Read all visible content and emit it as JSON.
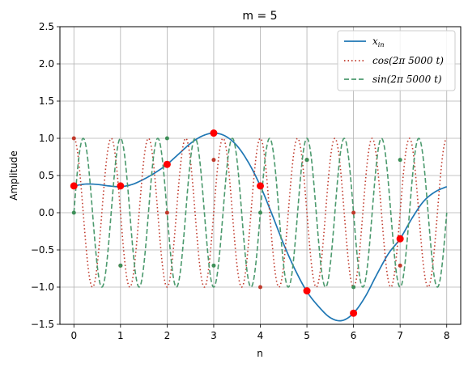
{
  "chart_data": {
    "type": "line",
    "title": "m = 5",
    "xlabel": "n",
    "ylabel": "Amplitude",
    "xlim": [
      -0.3,
      8.3
    ],
    "ylim": [
      -1.5,
      2.5
    ],
    "xticks": [
      "0",
      "1",
      "2",
      "3",
      "4",
      "5",
      "6",
      "7",
      "8"
    ],
    "yticks": [
      "2.5",
      "2.0",
      "1.5",
      "1.0",
      "0.5",
      "0.0",
      "−0.5",
      "−1.0",
      "−1.5"
    ],
    "grid": true,
    "legend_position": "top-right",
    "legend": {
      "xin_base": "x",
      "xin_sub": "in",
      "cos_label": "cos(2π 5000 t)",
      "sin_label": "sin(2π 5000 t)"
    },
    "series": [
      {
        "name": "x_in",
        "style": "solid",
        "color": "#1f77b4",
        "points": [
          [
            0,
            0.36
          ],
          [
            0.25,
            0.385
          ],
          [
            0.5,
            0.38
          ],
          [
            0.75,
            0.36
          ],
          [
            1,
            0.35
          ],
          [
            1.25,
            0.38
          ],
          [
            1.5,
            0.45
          ],
          [
            1.75,
            0.54
          ],
          [
            2,
            0.65
          ],
          [
            2.25,
            0.79
          ],
          [
            2.5,
            0.93
          ],
          [
            2.75,
            1.03
          ],
          [
            3,
            1.07
          ],
          [
            3.25,
            1.03
          ],
          [
            3.5,
            0.9
          ],
          [
            3.75,
            0.67
          ],
          [
            4,
            0.36
          ],
          [
            4.25,
            -0.02
          ],
          [
            4.5,
            -0.42
          ],
          [
            4.75,
            -0.77
          ],
          [
            5,
            -1.06
          ],
          [
            5.25,
            -1.26
          ],
          [
            5.5,
            -1.41
          ],
          [
            5.75,
            -1.45
          ],
          [
            6,
            -1.35
          ],
          [
            6.25,
            -1.13
          ],
          [
            6.5,
            -0.83
          ],
          [
            6.75,
            -0.55
          ],
          [
            7,
            -0.35
          ],
          [
            7.25,
            -0.08
          ],
          [
            7.5,
            0.15
          ],
          [
            7.75,
            0.28
          ],
          [
            8,
            0.35
          ]
        ]
      },
      {
        "name": "cos(2π 5000 t)",
        "style": "dotted",
        "color": "#c0392b",
        "cycles_per_unit": 1.25,
        "phase": "cos",
        "x_range": [
          0,
          8
        ]
      },
      {
        "name": "sin(2π 5000 t)",
        "style": "dashed",
        "color": "#4c9a6e",
        "cycles_per_unit": 1.25,
        "phase": "sin",
        "x_range": [
          0,
          8
        ]
      }
    ],
    "samples_xin": [
      [
        0,
        0.36
      ],
      [
        1,
        0.36
      ],
      [
        2,
        0.65
      ],
      [
        3,
        1.07
      ],
      [
        4,
        0.36
      ],
      [
        5,
        -1.05
      ],
      [
        6,
        -1.35
      ],
      [
        7,
        -0.35
      ]
    ],
    "samples_cos": [
      [
        0,
        1.0
      ],
      [
        1,
        -0.71
      ],
      [
        2,
        0.0
      ],
      [
        3,
        0.71
      ],
      [
        4,
        -1.0
      ],
      [
        5,
        0.71
      ],
      [
        6,
        0.0
      ],
      [
        7,
        -0.71
      ]
    ],
    "samples_sin": [
      [
        0,
        0.0
      ],
      [
        1,
        -0.71
      ],
      [
        2,
        1.0
      ],
      [
        3,
        -0.71
      ],
      [
        4,
        0.0
      ],
      [
        5,
        0.71
      ],
      [
        6,
        -1.0
      ],
      [
        7,
        0.71
      ]
    ],
    "colors": {
      "xin": "#1f77b4",
      "cos": "#c0392b",
      "sin": "#4c9a6e",
      "sample_xin": "#ff0000",
      "sample_cos": "#c0392b",
      "sample_sin": "#3d8f58",
      "grid": "#b0b0b0"
    }
  }
}
